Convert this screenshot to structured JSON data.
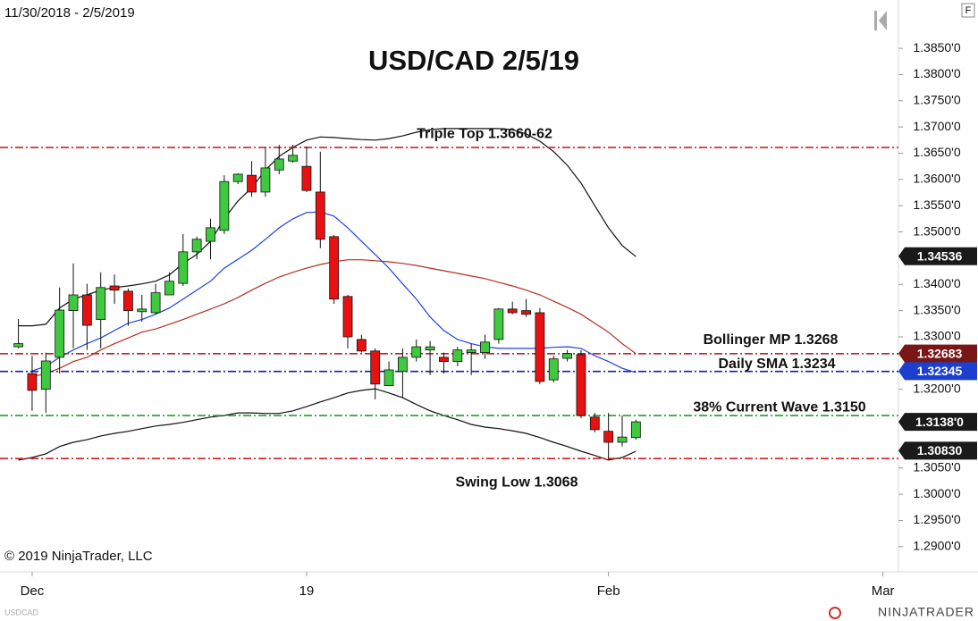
{
  "chart_data": {
    "type": "candlestick",
    "title": "USD/CAD 2/5/19",
    "date_range": "11/30/2018 - 2/5/2019",
    "symbol": "USDCAD",
    "copyright": "© 2019 NinjaTrader, LLC",
    "logo": "NINJATRADER",
    "corner_button": "F",
    "categories": [
      null,
      "Dec",
      null,
      null,
      null,
      null,
      null,
      null,
      null,
      null,
      null,
      null,
      null,
      null,
      null,
      null,
      null,
      null,
      null,
      null,
      null,
      "19",
      null,
      null,
      null,
      null,
      null,
      null,
      null,
      null,
      null,
      null,
      null,
      null,
      null,
      null,
      null,
      null,
      null,
      null,
      null,
      null,
      null,
      "Feb",
      null,
      null,
      null,
      null,
      null,
      null,
      null,
      null,
      null,
      null,
      null,
      null,
      null,
      null,
      null,
      null,
      null,
      null,
      null,
      "Mar"
    ],
    "open": [
      1.3281,
      1.323,
      1.32,
      1.3261,
      1.335,
      1.338,
      1.3333,
      1.3397,
      1.3387,
      1.3348,
      1.3346,
      1.338,
      1.3402,
      1.3462,
      1.3482,
      1.3503,
      1.3596,
      1.3608,
      1.3576,
      1.3618,
      1.3635,
      1.3625,
      1.3576,
      1.3491,
      1.3377,
      1.3295,
      1.3273,
      1.3207,
      1.3234,
      1.3261,
      1.3275,
      1.3261,
      1.3253,
      1.327,
      1.327,
      1.3295,
      1.3353,
      1.335,
      1.3346,
      1.3218,
      1.3259,
      1.3266,
      1.3147,
      1.312,
      1.3099,
      1.3108,
      null,
      null,
      null,
      null,
      null,
      null,
      null,
      null,
      null,
      null,
      null,
      null,
      null,
      null,
      null,
      null,
      null,
      null
    ],
    "high": [
      1.3334,
      1.3264,
      1.327,
      1.3394,
      1.344,
      1.3401,
      1.3423,
      1.3419,
      1.3392,
      1.338,
      1.3401,
      1.3423,
      1.3496,
      1.3491,
      1.3525,
      1.3608,
      1.3612,
      1.3635,
      1.3661,
      1.3666,
      1.3666,
      1.3663,
      1.3653,
      1.3494,
      1.338,
      1.3304,
      1.3278,
      1.3253,
      1.3278,
      1.3295,
      1.3292,
      1.327,
      1.3281,
      1.3287,
      1.3304,
      1.3355,
      1.3367,
      1.3372,
      1.3355,
      1.3264,
      1.3275,
      1.3275,
      1.3155,
      1.3155,
      1.315,
      1.3142,
      null,
      null,
      null,
      null,
      null,
      null,
      null,
      null,
      null,
      null,
      null,
      null,
      null,
      null,
      null,
      null,
      null,
      null
    ],
    "low": [
      1.3278,
      1.3159,
      1.3155,
      1.323,
      1.3278,
      1.3275,
      1.3278,
      1.3363,
      1.3321,
      1.3329,
      1.3343,
      1.338,
      1.3397,
      1.3448,
      1.3448,
      1.3496,
      1.3591,
      1.3567,
      1.3567,
      1.361,
      1.3632,
      1.3576,
      1.3469,
      1.3363,
      1.3278,
      1.327,
      1.3181,
      1.3207,
      1.3184,
      1.3253,
      1.3227,
      1.323,
      1.3244,
      1.3227,
      1.3258,
      1.3287,
      1.3343,
      1.3338,
      1.321,
      1.3213,
      1.3253,
      1.3145,
      1.3118,
      1.3068,
      1.3091,
      1.3104,
      null,
      null,
      null,
      null,
      null,
      null,
      null,
      null,
      null,
      null,
      null,
      null,
      null,
      null,
      null,
      null,
      null,
      null
    ],
    "close": [
      1.3287,
      1.3198,
      1.3254,
      1.3351,
      1.338,
      1.3322,
      1.3394,
      1.3389,
      1.335,
      1.3353,
      1.3384,
      1.3406,
      1.3462,
      1.3486,
      1.3508,
      1.3596,
      1.361,
      1.3576,
      1.3622,
      1.3639,
      1.3646,
      1.3579,
      1.3486,
      1.3372,
      1.33,
      1.3273,
      1.321,
      1.3237,
      1.3261,
      1.3281,
      1.3281,
      1.3253,
      1.3275,
      1.3275,
      1.329,
      1.3353,
      1.3346,
      1.3343,
      1.3215,
      1.3258,
      1.3268,
      1.315,
      1.3123,
      1.3099,
      1.3109,
      1.3138,
      null,
      null,
      null,
      null,
      null,
      null,
      null,
      null,
      null,
      null,
      null,
      null,
      null,
      null,
      null,
      null,
      null,
      null
    ],
    "up_color": "#3ec93e",
    "down_color": "#e81010",
    "lines": [
      {
        "color": "#111111",
        "values": [
          1.3321,
          1.3321,
          1.3324,
          1.3355,
          1.3372,
          1.338,
          1.3389,
          1.3394,
          1.3397,
          1.3401,
          1.3406,
          1.3418,
          1.344,
          1.3457,
          1.3482,
          1.3525,
          1.3559,
          1.3584,
          1.3618,
          1.3644,
          1.3661,
          1.3675,
          1.3681,
          1.368,
          1.3678,
          1.3676,
          1.3675,
          1.3678,
          1.3683,
          1.369,
          1.3695,
          1.3697,
          1.3697,
          1.3697,
          1.3697,
          1.3697,
          1.3695,
          1.3687,
          1.3673,
          1.3653,
          1.3627,
          1.3593,
          1.355,
          1.3508,
          1.3474,
          1.3453,
          null,
          null,
          null,
          null,
          null,
          null,
          null,
          null,
          null,
          null,
          null,
          null,
          null,
          null,
          null,
          null,
          null,
          null
        ]
      },
      {
        "color": "#111111",
        "values": [
          1.3065,
          1.307,
          1.3077,
          1.3091,
          1.3099,
          1.3104,
          1.3111,
          1.3116,
          1.312,
          1.3125,
          1.313,
          1.3133,
          1.3137,
          1.3142,
          1.3147,
          1.315,
          1.3155,
          1.3155,
          1.3154,
          1.3154,
          1.3159,
          1.3167,
          1.3176,
          1.3184,
          1.3193,
          1.3198,
          1.3201,
          1.3193,
          1.3184,
          1.3171,
          1.3159,
          1.315,
          1.3142,
          1.3133,
          1.3128,
          1.3125,
          1.3121,
          1.3116,
          1.3108,
          1.3099,
          1.3091,
          1.3082,
          1.3074,
          1.3065,
          1.307,
          1.3082,
          null,
          null,
          null,
          null,
          null,
          null,
          null,
          null,
          null,
          null,
          null,
          null,
          null,
          null,
          null,
          null,
          null,
          null
        ]
      },
      {
        "color": "#2040e0",
        "values": [
          null,
          1.3235,
          1.3244,
          1.3261,
          1.3275,
          1.3287,
          1.3298,
          1.3312,
          1.3326,
          1.3333,
          1.3343,
          1.3355,
          1.3372,
          1.3389,
          1.3406,
          1.3431,
          1.3448,
          1.3465,
          1.3486,
          1.3508,
          1.3525,
          1.3537,
          1.3538,
          1.353,
          1.3508,
          1.3482,
          1.3457,
          1.3431,
          1.3401,
          1.3372,
          1.3338,
          1.3312,
          1.3295,
          1.3287,
          1.3281,
          1.3278,
          1.3278,
          1.3278,
          1.3278,
          1.328,
          1.3281,
          1.3278,
          1.3264,
          1.3253,
          1.324,
          1.3232,
          null,
          null,
          null,
          null,
          null,
          null,
          null,
          null,
          null,
          null,
          null,
          null,
          null,
          null,
          null,
          null,
          null,
          null
        ]
      },
      {
        "color": "#b03020",
        "values": [
          null,
          1.3224,
          1.323,
          1.324,
          1.3253,
          1.3261,
          1.3275,
          1.3287,
          1.3298,
          1.3309,
          1.3315,
          1.3324,
          1.3333,
          1.3343,
          1.3353,
          1.3363,
          1.3375,
          1.3389,
          1.3402,
          1.3414,
          1.3423,
          1.3431,
          1.3438,
          1.3443,
          1.3447,
          1.3447,
          1.3445,
          1.3443,
          1.344,
          1.3436,
          1.3431,
          1.3426,
          1.3421,
          1.3416,
          1.3411,
          1.3404,
          1.3397,
          1.3389,
          1.338,
          1.3368,
          1.3356,
          1.3343,
          1.3326,
          1.3309,
          1.3287,
          1.3268,
          null,
          null,
          null,
          null,
          null,
          null,
          null,
          null,
          null,
          null,
          null,
          null,
          null,
          null,
          null,
          null,
          null,
          null
        ]
      }
    ],
    "levels": [
      {
        "value": 1.3661,
        "label": "Triple Top 1.3660-62",
        "color": "#d42020"
      },
      {
        "value": 1.3268,
        "label": "Bollinger MP 1.3268",
        "color": "#c42020"
      },
      {
        "value": 1.3234,
        "label": "Daily SMA 1.3234",
        "color": "#1a1aa8"
      },
      {
        "value": 1.315,
        "label": "38% Current Wave 1.3150",
        "color": "#2a9a2a"
      },
      {
        "value": 1.3068,
        "label": "Swing Low 1.3068",
        "color": "#d42020"
      }
    ],
    "badges": [
      {
        "value": 1.34536,
        "color": "#1a1a1a"
      },
      {
        "value": 1.32683,
        "color": "#7a1616"
      },
      {
        "value": 1.32345,
        "color": "#1c3fd0"
      },
      {
        "value": 1.3138,
        "label": "1.3138'0",
        "color": "#1a1a1a"
      },
      {
        "value": 1.3083,
        "label": "1.30830",
        "color": "#1a1a1a"
      }
    ],
    "ylim": [
      1.2852,
      1.3891
    ],
    "yticks": [
      {
        "value": 1.385,
        "label": "1.3850'0"
      },
      {
        "value": 1.38,
        "label": "1.3800'0"
      },
      {
        "value": 1.375,
        "label": "1.3750'0"
      },
      {
        "value": 1.37,
        "label": "1.3700'0"
      },
      {
        "value": 1.365,
        "label": "1.3650'0"
      },
      {
        "value": 1.36,
        "label": "1.3600'0"
      },
      {
        "value": 1.355,
        "label": "1.3550'0"
      },
      {
        "value": 1.35,
        "label": "1.3500'0"
      },
      {
        "value": 1.34,
        "label": "1.3400'0"
      },
      {
        "value": 1.335,
        "label": "1.3350'0"
      },
      {
        "value": 1.33,
        "label": "1.3300'0"
      },
      {
        "value": 1.32,
        "label": "1.3200'0"
      },
      {
        "value": 1.305,
        "label": "1.3050'0"
      },
      {
        "value": 1.3,
        "label": "1.3000'0"
      },
      {
        "value": 1.295,
        "label": "1.2950'0"
      },
      {
        "value": 1.29,
        "label": "1.2900'0"
      }
    ],
    "grid": false
  }
}
